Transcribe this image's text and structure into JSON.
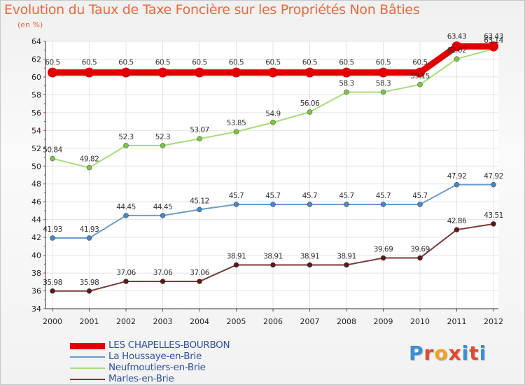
{
  "title": "Evolution du Taux de Taxe Foncière sur les Propriétés Non Bâties",
  "subtitle": "(en %)",
  "logo": {
    "text": "Proxiti",
    "letter_colors": [
      "#3b8fd4",
      "#e04a2a",
      "#f2a21e",
      "#e04a2a",
      "#3b8fd4",
      "#e04a2a",
      "#3b8fd4"
    ]
  },
  "chart_data": {
    "type": "line",
    "title": "Evolution du Taux de Taxe Foncière sur les Propriétés Non Bâties",
    "ylabel": "(en %)",
    "ylim": [
      34,
      64
    ],
    "yticks": [
      34,
      36,
      38,
      40,
      42,
      44,
      46,
      48,
      50,
      52,
      54,
      56,
      58,
      60,
      62,
      64
    ],
    "categories": [
      "2000",
      "2001",
      "2002",
      "2003",
      "2004",
      "2005",
      "2006",
      "2007",
      "2008",
      "2009",
      "2010",
      "2011",
      "2012"
    ],
    "series": [
      {
        "name": "LES CHAPELLES-BOURBON",
        "color": "#e00000",
        "width": 9,
        "marker": 7,
        "values": [
          60.5,
          60.5,
          60.5,
          60.5,
          60.5,
          60.5,
          60.5,
          60.5,
          60.5,
          60.5,
          60.5,
          63.43,
          63.43
        ],
        "labels": [
          "60.5",
          "60.5",
          "60.5",
          "60.5",
          "60.5",
          "60.5",
          "60.5",
          "60.5",
          "60.5",
          "60.5",
          "60.5",
          "63.43",
          "63.43"
        ]
      },
      {
        "name": "La Houssaye-en-Brie",
        "color": "#6c9ccc",
        "width": 2,
        "marker": 3.5,
        "markerColor": "#4a86c4",
        "values": [
          41.93,
          41.93,
          44.45,
          44.45,
          45.12,
          45.7,
          45.7,
          45.7,
          45.7,
          45.7,
          45.7,
          47.92,
          47.92
        ],
        "labels": [
          "41.93",
          "41.93",
          "44.45",
          "44.45",
          "45.12",
          "45.7",
          "45.7",
          "45.7",
          "45.7",
          "45.7",
          "45.7",
          "47.92",
          "47.92"
        ]
      },
      {
        "name": "Neufmoutiers-en-Brie",
        "color": "#a8dc78",
        "width": 2,
        "marker": 3.5,
        "markerColor": "#7cc444",
        "values": [
          50.84,
          49.82,
          52.3,
          52.3,
          53.07,
          53.85,
          54.9,
          56.06,
          58.3,
          58.3,
          59.15,
          62.02,
          63.14
        ],
        "labels": [
          "50.84",
          "49.82",
          "52.3",
          "52.3",
          "53.07",
          "53.85",
          "54.9",
          "56.06",
          "58.3",
          "58.3",
          "59.15",
          "62.02",
          "63.14"
        ]
      },
      {
        "name": "Marles-en-Brie",
        "color": "#7a3838",
        "width": 2,
        "marker": 3.5,
        "markerColor": "#5a1a1a",
        "values": [
          35.98,
          35.98,
          37.06,
          37.06,
          37.06,
          38.91,
          38.91,
          38.91,
          38.91,
          39.69,
          39.69,
          42.86,
          43.51
        ],
        "labels": [
          "35.98",
          "35.98",
          "37.06",
          "37.06",
          "37.06",
          "38.91",
          "38.91",
          "38.91",
          "38.91",
          "39.69",
          "39.69",
          "42.86",
          "43.51"
        ]
      }
    ]
  }
}
